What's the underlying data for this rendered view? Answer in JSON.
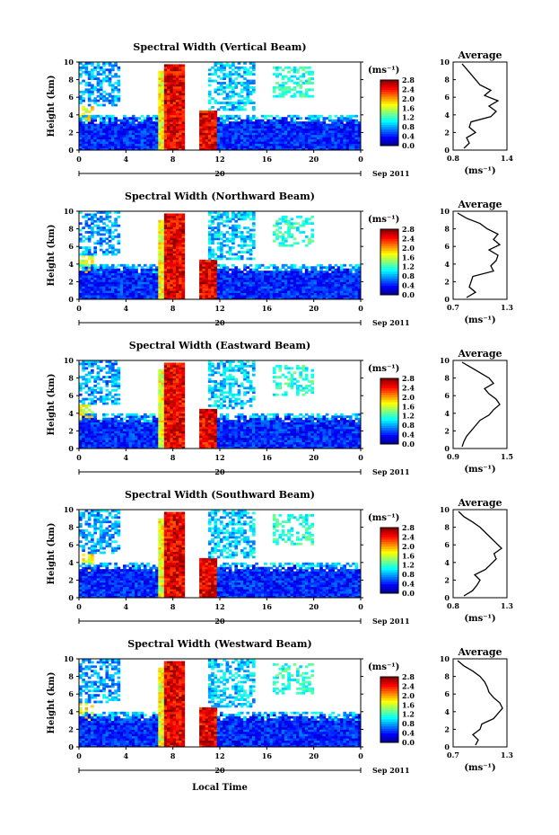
{
  "figure": {
    "xlabel": "Local Time",
    "colorbar_unit": "(ms⁻¹)",
    "colorbar_ticks": [
      "2.8",
      "2.4",
      "2.0",
      "1.6",
      "1.2",
      "0.8",
      "0.4",
      "0.0"
    ],
    "date_label": "20",
    "month_label": "Sep 2011",
    "avg_title": "Average",
    "avg_xlabel": "(ms⁻¹)"
  },
  "chart_data": [
    {
      "type": "heatmap",
      "title": "Spectral Width (Vertical Beam)",
      "xlabel": "Local Time",
      "ylabel": "Height (km)",
      "x_ticks": [
        "0",
        "4",
        "8",
        "12",
        "16",
        "20",
        "0"
      ],
      "y_ticks": [
        "0",
        "2",
        "4",
        "6",
        "8",
        "10"
      ],
      "xlim": [
        0,
        24
      ],
      "ylim": [
        0,
        10
      ],
      "colorbar": {
        "label": "(ms⁻¹)",
        "range": [
          0.0,
          2.8
        ]
      },
      "average_profile": {
        "title": "Average",
        "xlabel": "(ms⁻¹)",
        "xlim": [
          0.8,
          1.4
        ],
        "x_ticks": [
          "0.8",
          "1.4"
        ],
        "y_ticks": [
          "0",
          "2",
          "4",
          "6",
          "8",
          "10"
        ],
        "height_km": [
          0.2,
          0.8,
          1.4,
          2.0,
          2.6,
          3.2,
          3.8,
          4.4,
          5.0,
          5.6,
          6.2,
          6.8,
          7.4,
          8.0,
          8.6,
          9.2,
          9.8
        ],
        "value": [
          0.92,
          0.98,
          0.95,
          1.05,
          0.98,
          1.0,
          1.22,
          1.28,
          1.2,
          1.3,
          1.15,
          1.22,
          1.1,
          1.05,
          1.0,
          0.95,
          0.9
        ]
      }
    },
    {
      "type": "heatmap",
      "title": "Spectral Width (Northward Beam)",
      "xlabel": "Local Time",
      "ylabel": "Height (km)",
      "x_ticks": [
        "0",
        "4",
        "8",
        "12",
        "16",
        "20",
        "0"
      ],
      "y_ticks": [
        "0",
        "2",
        "4",
        "6",
        "8",
        "10"
      ],
      "xlim": [
        0,
        24
      ],
      "ylim": [
        0,
        10
      ],
      "colorbar": {
        "label": "(ms⁻¹)",
        "range": [
          0.0,
          2.8
        ]
      },
      "average_profile": {
        "title": "Average",
        "xlabel": "(ms⁻¹)",
        "xlim": [
          0.7,
          1.3
        ],
        "x_ticks": [
          "0.7",
          "1.3"
        ],
        "y_ticks": [
          "0",
          "2",
          "4",
          "6",
          "8",
          "10"
        ],
        "height_km": [
          0.2,
          0.8,
          1.4,
          2.0,
          2.6,
          3.2,
          3.8,
          4.4,
          5.0,
          5.6,
          6.2,
          6.8,
          7.4,
          8.0,
          8.6,
          9.2,
          9.8
        ],
        "value": [
          0.85,
          0.95,
          0.88,
          0.9,
          0.92,
          1.15,
          1.12,
          1.18,
          1.2,
          1.1,
          1.22,
          1.15,
          1.2,
          1.08,
          1.0,
          0.85,
          0.75
        ]
      }
    },
    {
      "type": "heatmap",
      "title": "Spectral Width (Eastward Beam)",
      "xlabel": "Local Time",
      "ylabel": "Height (km)",
      "x_ticks": [
        "0",
        "4",
        "8",
        "12",
        "16",
        "20",
        "0"
      ],
      "y_ticks": [
        "0",
        "2",
        "4",
        "6",
        "8",
        "10"
      ],
      "xlim": [
        0,
        24
      ],
      "ylim": [
        0,
        10
      ],
      "colorbar": {
        "label": "(ms⁻¹)",
        "range": [
          0.0,
          2.8
        ]
      },
      "average_profile": {
        "title": "Average",
        "xlabel": "(ms⁻¹)",
        "xlim": [
          0.9,
          1.5
        ],
        "x_ticks": [
          "0.9",
          "1.5"
        ],
        "y_ticks": [
          "0",
          "2",
          "4",
          "6",
          "8",
          "10"
        ],
        "height_km": [
          0.2,
          0.8,
          1.4,
          2.0,
          2.6,
          3.2,
          3.8,
          4.4,
          5.0,
          5.6,
          6.2,
          6.8,
          7.4,
          8.0,
          8.6,
          9.2,
          9.8
        ],
        "value": [
          1.0,
          1.02,
          1.05,
          1.1,
          1.15,
          1.2,
          1.3,
          1.35,
          1.42,
          1.38,
          1.3,
          1.25,
          1.35,
          1.3,
          1.2,
          1.1,
          1.0
        ]
      }
    },
    {
      "type": "heatmap",
      "title": "Spectral Width (Southward Beam)",
      "xlabel": "Local Time",
      "ylabel": "Height (km)",
      "x_ticks": [
        "0",
        "4",
        "8",
        "12",
        "16",
        "20",
        "0"
      ],
      "y_ticks": [
        "0",
        "2",
        "4",
        "6",
        "8",
        "10"
      ],
      "xlim": [
        0,
        24
      ],
      "ylim": [
        0,
        10
      ],
      "colorbar": {
        "label": "(ms⁻¹)",
        "range": [
          0.0,
          2.8
        ]
      },
      "average_profile": {
        "title": "Average",
        "xlabel": "(ms⁻¹)",
        "xlim": [
          0.8,
          1.3
        ],
        "x_ticks": [
          "0.8",
          "1.3"
        ],
        "y_ticks": [
          "0",
          "2",
          "4",
          "6",
          "8",
          "10"
        ],
        "height_km": [
          0.2,
          0.8,
          1.4,
          2.0,
          2.6,
          3.2,
          3.8,
          4.4,
          5.0,
          5.6,
          6.2,
          6.8,
          7.4,
          8.0,
          8.6,
          9.2,
          9.8
        ],
        "value": [
          0.9,
          0.98,
          1.02,
          1.05,
          1.0,
          1.1,
          1.15,
          1.2,
          1.18,
          1.25,
          1.2,
          1.15,
          1.1,
          1.05,
          0.98,
          0.9,
          0.85
        ]
      }
    },
    {
      "type": "heatmap",
      "title": "Spectral Width (Westward Beam)",
      "xlabel": "Local Time",
      "ylabel": "Height (km)",
      "x_ticks": [
        "0",
        "4",
        "8",
        "12",
        "16",
        "20",
        "0"
      ],
      "y_ticks": [
        "0",
        "2",
        "4",
        "6",
        "8",
        "10"
      ],
      "xlim": [
        0,
        24
      ],
      "ylim": [
        0,
        10
      ],
      "colorbar": {
        "label": "(ms⁻¹)",
        "range": [
          0.0,
          2.8
        ]
      },
      "average_profile": {
        "title": "Average",
        "xlabel": "(ms⁻¹)",
        "xlim": [
          0.7,
          1.3
        ],
        "x_ticks": [
          "0.7",
          "1.3"
        ],
        "y_ticks": [
          "0",
          "2",
          "4",
          "6",
          "8",
          "10"
        ],
        "height_km": [
          0.2,
          0.8,
          1.4,
          2.0,
          2.6,
          3.2,
          3.8,
          4.4,
          5.0,
          5.6,
          6.2,
          6.8,
          7.4,
          8.0,
          8.6,
          9.2,
          9.8
        ],
        "value": [
          0.95,
          0.98,
          0.92,
          1.0,
          1.02,
          1.15,
          1.2,
          1.25,
          1.22,
          1.15,
          1.1,
          1.08,
          1.05,
          1.0,
          0.92,
          0.82,
          0.75
        ]
      }
    }
  ]
}
